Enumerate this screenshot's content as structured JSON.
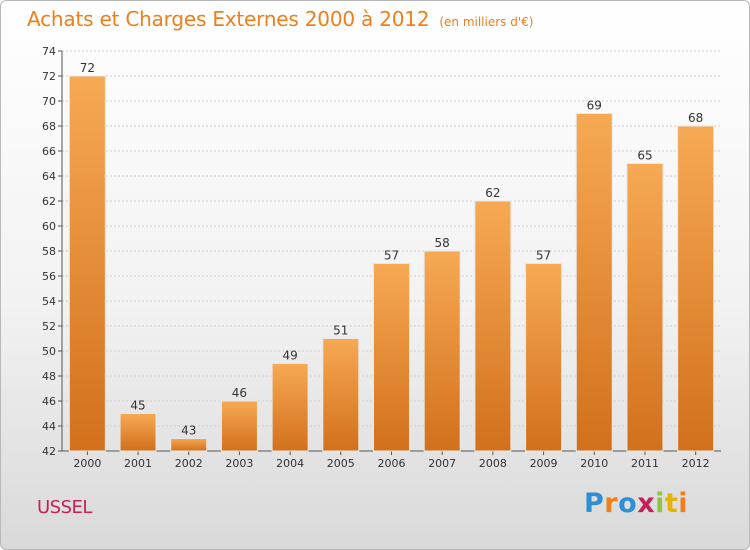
{
  "title": "Achats et Charges Externes 2000 à 2012",
  "unit": "(en milliers d'€)",
  "commune": "USSEL",
  "brand": {
    "letters": [
      "P",
      "r",
      "o",
      "x",
      "i",
      "t",
      "i"
    ]
  },
  "colors": {
    "title": "#f07e1a",
    "commune": "#c4205a",
    "bar_light": "#f7a954",
    "bar_dark": "#d2701c"
  },
  "chart_data": {
    "type": "bar",
    "categories": [
      "2000",
      "2001",
      "2002",
      "2003",
      "2004",
      "2005",
      "2006",
      "2007",
      "2008",
      "2009",
      "2010",
      "2011",
      "2012"
    ],
    "values": [
      72,
      45,
      43,
      46,
      49,
      51,
      57,
      58,
      62,
      57,
      69,
      65,
      68
    ],
    "title": "Achats et Charges Externes 2000 à 2012",
    "ylim": [
      42,
      74
    ],
    "yticks": [
      42,
      44,
      46,
      48,
      50,
      52,
      54,
      56,
      58,
      60,
      62,
      64,
      66,
      68,
      70,
      72,
      74
    ],
    "grid": true,
    "data_labels": true
  }
}
